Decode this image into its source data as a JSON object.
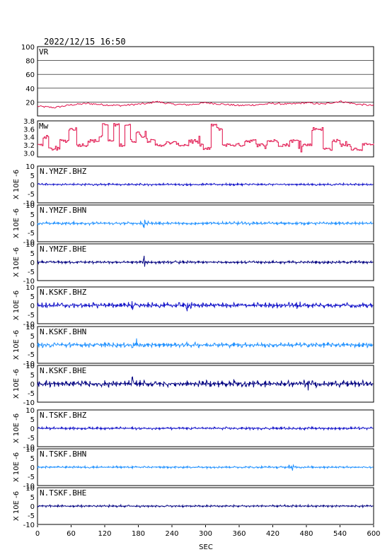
{
  "header": {
    "datetime": "2022/12/15  16:50"
  },
  "x_axis": {
    "label": "SEC",
    "ticks": [
      "0",
      "60",
      "120",
      "180",
      "240",
      "300",
      "360",
      "420",
      "480",
      "540",
      "600"
    ]
  },
  "colors": {
    "vr": "#e0104a",
    "mw": "#e0104a",
    "bhz": "#1010c8",
    "bhn": "#1e90ff",
    "bhe": "#000080"
  },
  "chart_data": [
    {
      "type": "line",
      "label": "VR",
      "ylim": [
        0,
        100
      ],
      "yticks": [
        "100",
        "80",
        "60",
        "40",
        "20"
      ],
      "xlim": [
        0,
        600
      ],
      "grid": true,
      "series": [
        {
          "x": [
            0,
            30,
            60,
            90,
            120,
            150,
            180,
            200,
            210,
            240,
            270,
            300,
            330,
            360,
            390,
            420,
            450,
            480,
            510,
            540,
            570,
            600
          ],
          "values": [
            14,
            12,
            16,
            18,
            16,
            15,
            17,
            18,
            21,
            17,
            16,
            19,
            17,
            15,
            16,
            18,
            17,
            19,
            17,
            21,
            17,
            15
          ]
        }
      ]
    },
    {
      "type": "line",
      "label": "Mw",
      "ylim": [
        2.9,
        3.8
      ],
      "yticks": [
        "3.8",
        "3.6",
        "3.4",
        "3.2",
        "3.0"
      ],
      "xlim": [
        0,
        600
      ],
      "series": [
        {
          "x": [
            0,
            10,
            20,
            40,
            55,
            70,
            90,
            110,
            115,
            125,
            135,
            145,
            155,
            165,
            175,
            185,
            195,
            210,
            230,
            250,
            270,
            285,
            295,
            310,
            320,
            330,
            350,
            370,
            390,
            410,
            430,
            450,
            470,
            490,
            510,
            525,
            540,
            560,
            580,
            600
          ],
          "values": [
            3.2,
            3.4,
            3.1,
            3.3,
            3.6,
            3.2,
            3.3,
            3.4,
            3.7,
            3.3,
            3.7,
            3.2,
            3.7,
            3.3,
            3.5,
            3.4,
            3.3,
            3.2,
            3.25,
            3.2,
            3.3,
            3.2,
            3.1,
            3.7,
            3.6,
            3.2,
            3.2,
            3.3,
            3.2,
            3.3,
            3.2,
            3.3,
            3.2,
            3.6,
            3.1,
            3.3,
            3.2,
            3.1,
            3.2,
            3.2
          ]
        }
      ]
    }
  ],
  "waveforms": {
    "ylim": [
      -10,
      10
    ],
    "yticks": [
      "10",
      "5",
      "0",
      "-5",
      "-10"
    ],
    "ylabel": "X 10E -6",
    "channels": [
      {
        "station": "N.YMZF.BHZ",
        "amplitude": 0.7,
        "bursts": []
      },
      {
        "station": "N.YMZF.BHN",
        "amplitude": 1.0,
        "bursts": [
          190
        ]
      },
      {
        "station": "N.YMZF.BHE",
        "amplitude": 0.9,
        "bursts": [
          190
        ]
      },
      {
        "station": "N.KSKF.BHZ",
        "amplitude": 1.8,
        "bursts": [
          170,
          270,
          465
        ]
      },
      {
        "station": "N.KSKF.BHN",
        "amplitude": 1.6,
        "bursts": [
          175
        ]
      },
      {
        "station": "N.KSKF.BHE",
        "amplitude": 2.0,
        "bursts": [
          170,
          350,
          480
        ]
      },
      {
        "station": "N.TSKF.BHZ",
        "amplitude": 0.8,
        "bursts": []
      },
      {
        "station": "N.TSKF.BHN",
        "amplitude": 0.7,
        "bursts": [
          455
        ]
      },
      {
        "station": "N.TSKF.BHE",
        "amplitude": 0.7,
        "bursts": []
      }
    ],
    "channel_colors": [
      "bhz",
      "bhn",
      "bhe",
      "bhz",
      "bhn",
      "bhe",
      "bhz",
      "bhn",
      "bhe"
    ]
  }
}
